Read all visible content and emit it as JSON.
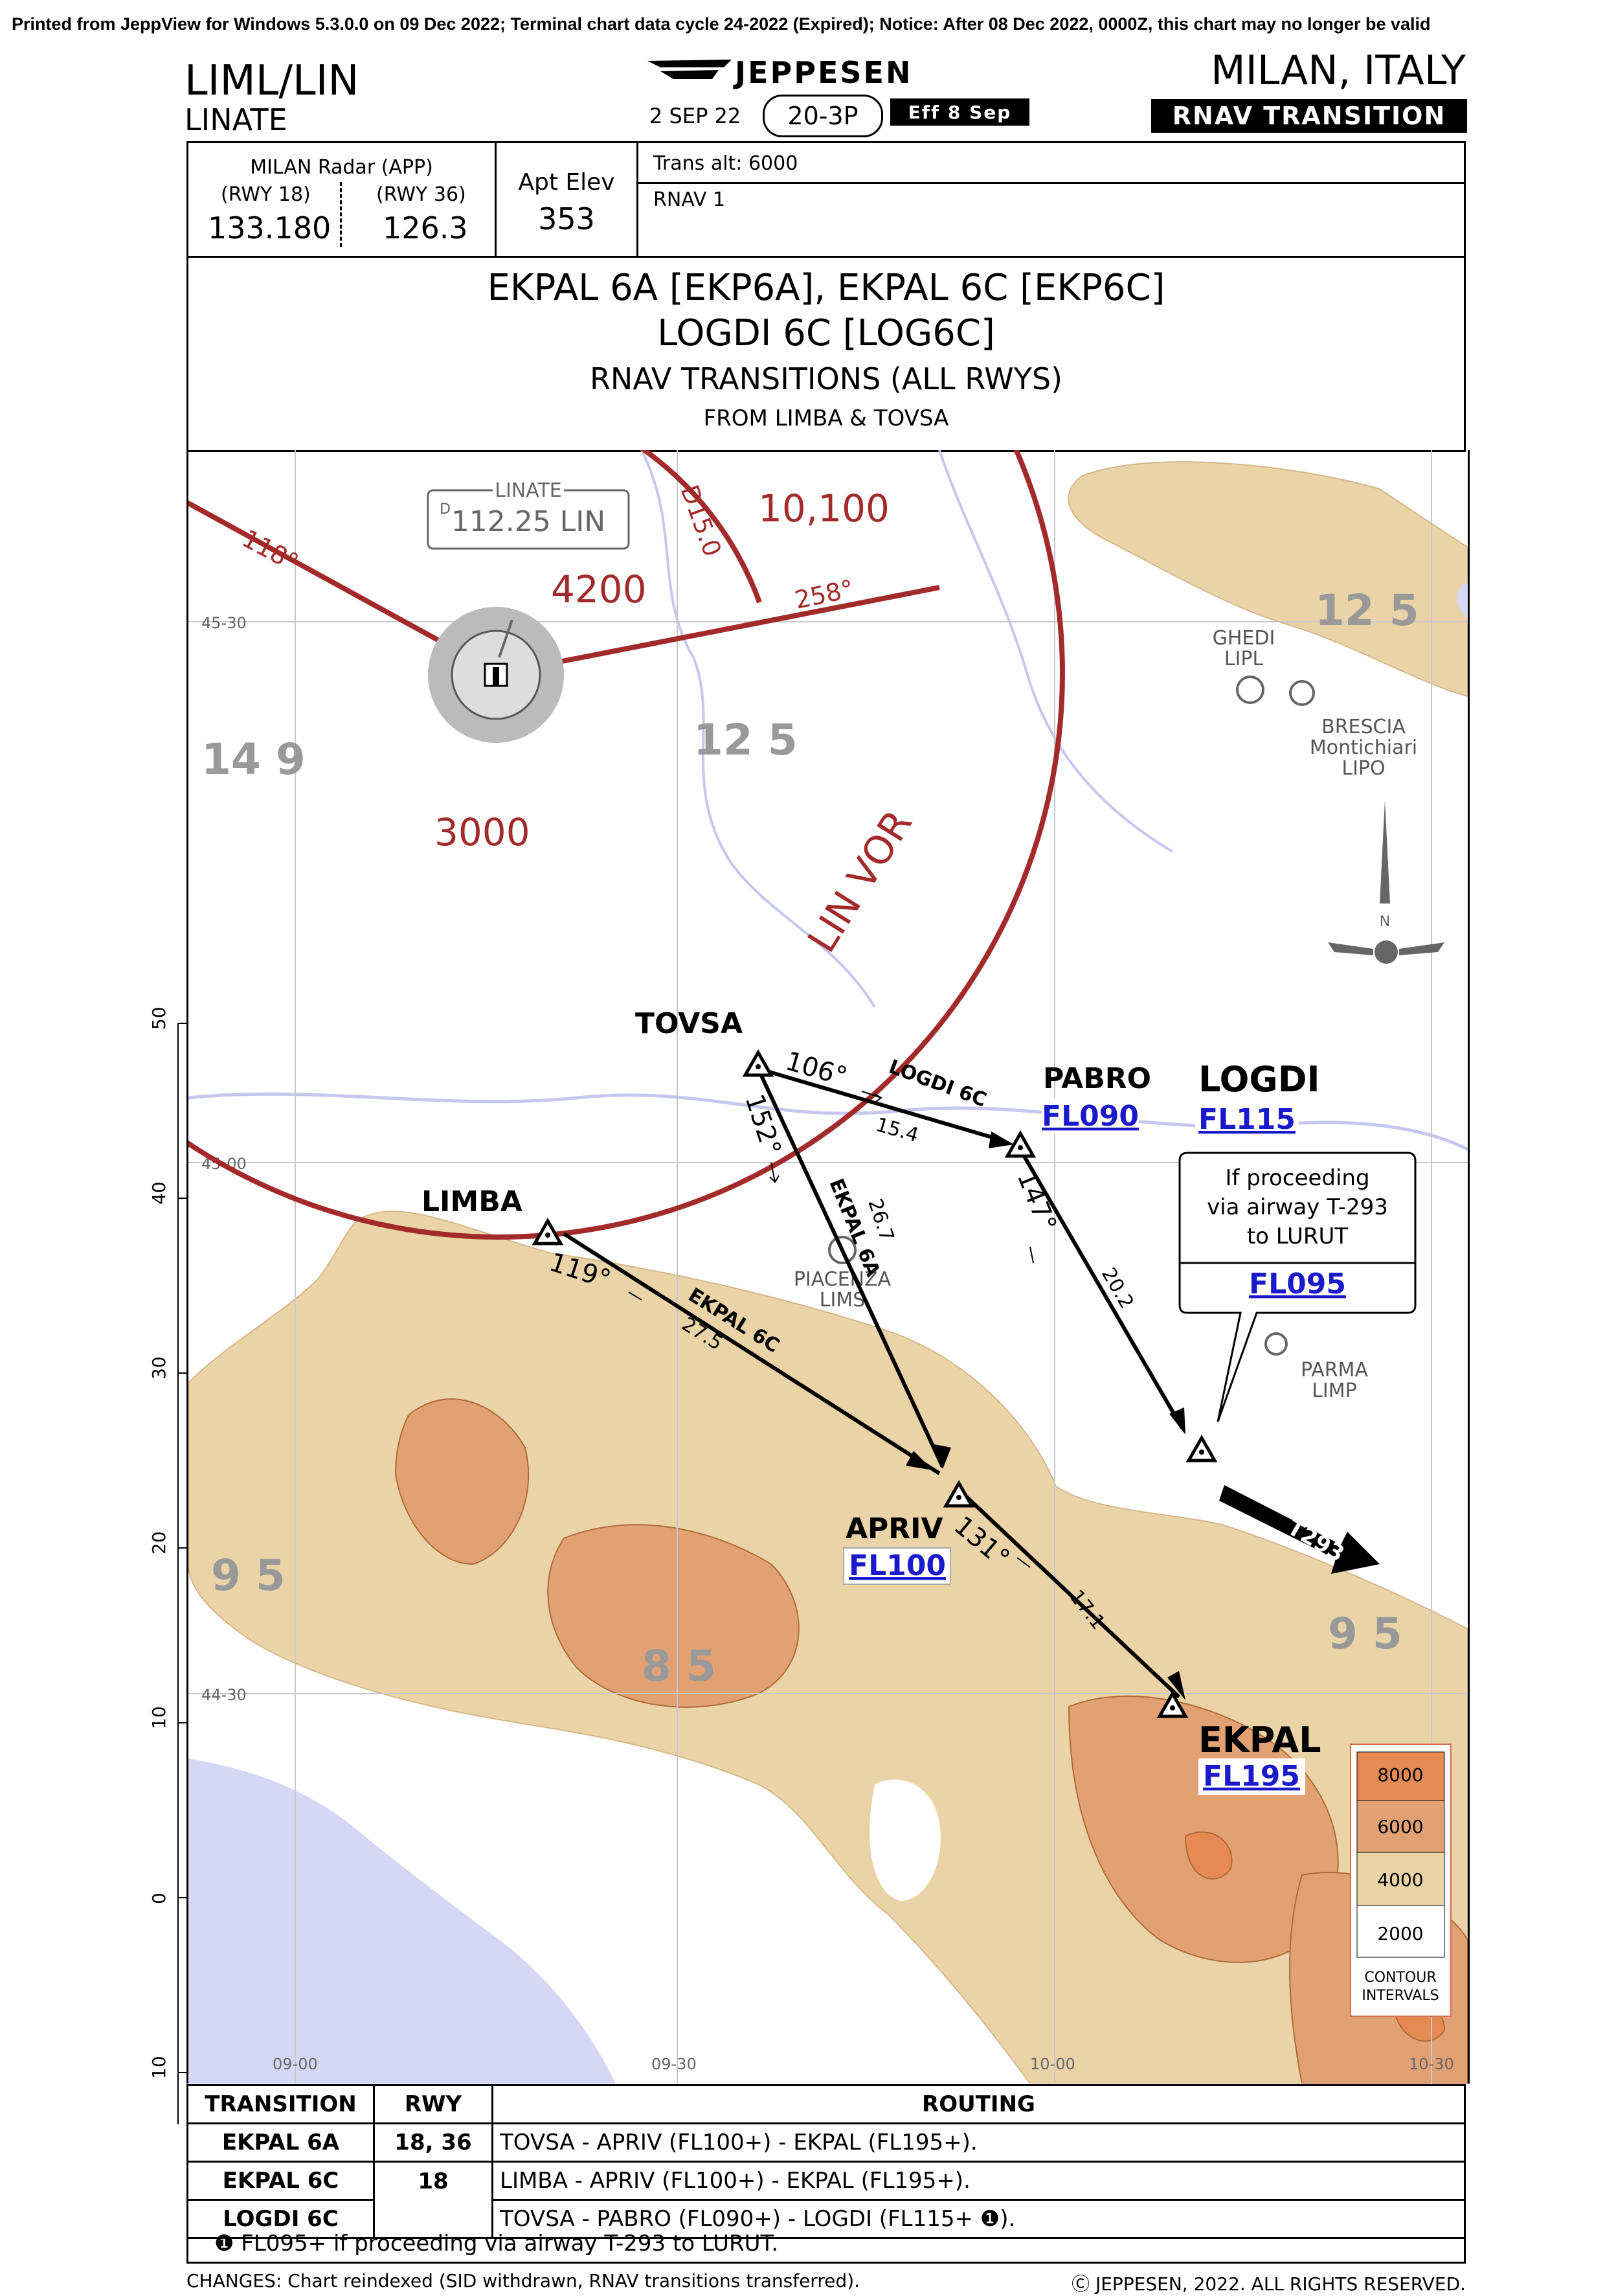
{
  "notice": "Printed from JeppView for Windows 5.3.0.0 on 09 Dec 2022; Terminal chart data cycle 24-2022 (Expired); Notice: After 08 Dec 2022, 0000Z, this chart may no longer be valid",
  "header": {
    "icao_iata": "LIML/LIN",
    "airport": "LINATE",
    "brand": "JEPPESEN",
    "date": "2 SEP 22",
    "chart_no": "20-3P",
    "effective": "Eff 8 Sep",
    "city": "MILAN, ITALY",
    "chart_type": "RNAV TRANSITION"
  },
  "comms": {
    "label": "MILAN Radar (APP)",
    "rwy18": "(RWY 18)",
    "rwy36": "(RWY 36)",
    "freq18": "133.180",
    "freq36": "126.3",
    "apt_elev_label": "Apt Elev",
    "apt_elev": "353",
    "trans_alt": "Trans alt: 6000",
    "rnav": "RNAV 1"
  },
  "title": {
    "line1": "EKPAL 6A [EKP6A], EKPAL 6C [EKP6C]",
    "line2": "LOGDI 6C [LOG6C]",
    "line3": "RNAV TRANSITIONS (ALL RWYS)",
    "line4": "FROM LIMBA & TOVSA"
  },
  "map": {
    "vor_box_title": "LINATE",
    "vor_box_d": "D",
    "vor_box_freq": "112.25 LIN",
    "msa": [
      "10,100",
      "4200",
      "3000"
    ],
    "msa_radials": [
      "118°",
      "258°"
    ],
    "dme_arc": "D15.0",
    "vor_arc_label": "LIN VOR",
    "grid_mora": [
      "12 5",
      "14 9",
      "12 5",
      "9 5",
      "8 5",
      "9 5"
    ],
    "lat_labels": [
      "45-30",
      "45-00",
      "44-30"
    ],
    "lon_labels": [
      "09-00",
      "09-30",
      "10-00",
      "10-30"
    ],
    "scale_labels": [
      "50",
      "40",
      "30",
      "20",
      "10",
      "0",
      "10"
    ],
    "airports": [
      {
        "name": "GHEDI",
        "code": "LIPL"
      },
      {
        "name": "BRESCIA",
        "sub": "Montichiari",
        "code": "LIPO"
      },
      {
        "name": "PIACENZA",
        "code": "LIMS"
      },
      {
        "name": "PARMA",
        "code": "LIMP"
      }
    ],
    "north": "N",
    "fixes": {
      "tovsa": "TOVSA",
      "limba": "LIMBA",
      "pabro": "PABRO",
      "pabro_alt": "FL090",
      "logdi": "LOGDI",
      "logdi_alt": "FL115",
      "apriv": "APRIV",
      "apriv_alt": "FL100",
      "ekpal": "EKPAL",
      "ekpal_alt": "FL195"
    },
    "legs": {
      "tovsa_pabro_crs": "106°",
      "tovsa_pabro_name": "LOGDI 6C",
      "tovsa_pabro_dist": "15.4",
      "tovsa_apriv_crs": "152°",
      "tovsa_apriv_name": "EKPAL 6A",
      "tovsa_apriv_dist": "26.7",
      "limba_apriv_crs": "119°",
      "limba_apriv_name": "EKPAL 6C",
      "limba_apriv_dist": "27.5",
      "pabro_logdi_crs": "147°",
      "pabro_logdi_dist": "20.2",
      "apriv_ekpal_crs": "131°",
      "apriv_ekpal_dist": "17.1"
    },
    "callout": {
      "line1": "If proceeding",
      "line2": "via airway T-293",
      "line3": "to LURUT",
      "alt": "FL095"
    },
    "airway": "T293",
    "legend": {
      "levels": [
        "8000",
        "6000",
        "4000",
        "2000"
      ],
      "title1": "CONTOUR",
      "title2": "INTERVALS"
    }
  },
  "table": {
    "headers": [
      "TRANSITION",
      "RWY",
      "ROUTING"
    ],
    "rows": [
      {
        "transition": "EKPAL 6A",
        "rwy": "18, 36",
        "routing": "TOVSA - APRIV (FL100+) - EKPAL (FL195+)."
      },
      {
        "transition": "EKPAL 6C",
        "rwy": "18",
        "routing": "LIMBA - APRIV (FL100+) - EKPAL (FL195+)."
      },
      {
        "transition": "LOGDI 6C",
        "rwy": "",
        "routing": "TOVSA - PABRO (FL090+) - LOGDI (FL115+ ❶)."
      }
    ],
    "note": "❶ FL095+ if proceeding via airway T-293 to LURUT."
  },
  "footer": {
    "changes": "CHANGES:  Chart reindexed (SID withdrawn, RNAV transitions transferred).",
    "copyright": "Ⓒ JEPPESEN, 2022. ALL RIGHTS RESERVED."
  },
  "colors": {
    "terrain_low": "#ebd3a8",
    "terrain_mid": "#e2a173",
    "terrain_high": "#e58a52",
    "msa_red": "#a32a2a",
    "water": "#d6d6f5",
    "route_blue": "#1a1acc"
  }
}
